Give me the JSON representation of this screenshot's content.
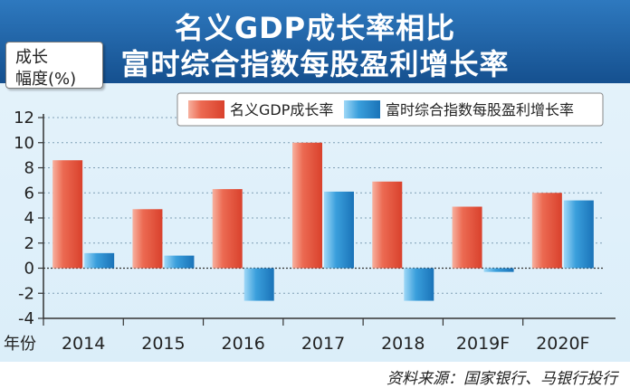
{
  "title": {
    "line1": "名义GDP成长率相比",
    "line2": "富时综合指数每股盈利增长率"
  },
  "ylabel": {
    "line1": "成长",
    "line2": "幅度(%)"
  },
  "xlabel": "年份",
  "source": "资料来源：国家银行、马银行投行",
  "colors": {
    "gdp": "#e8553f",
    "eps": "#2d8fd0",
    "banner": "#1f5fa6"
  },
  "chart_data": {
    "type": "bar",
    "title": "名义GDP成长率相比 富时综合指数每股盈利增长率",
    "xlabel": "年份",
    "ylabel": "成长幅度(%)",
    "ylim": [
      -4,
      12
    ],
    "yticks": [
      -4,
      -2,
      0,
      2,
      4,
      6,
      8,
      10,
      12
    ],
    "grid": "horizontal dotted",
    "legend": "top-right",
    "categories": [
      "2014",
      "2015",
      "2016",
      "2017",
      "2018",
      "2019F",
      "2020F"
    ],
    "series": [
      {
        "name": "名义GDP成长率",
        "values": [
          8.6,
          4.7,
          6.3,
          10.0,
          6.9,
          4.9,
          6.0
        ]
      },
      {
        "name": "富时综合指数每股盈利增长率",
        "values": [
          1.2,
          1.0,
          -2.6,
          6.1,
          -2.6,
          -0.3,
          5.4
        ]
      }
    ]
  }
}
